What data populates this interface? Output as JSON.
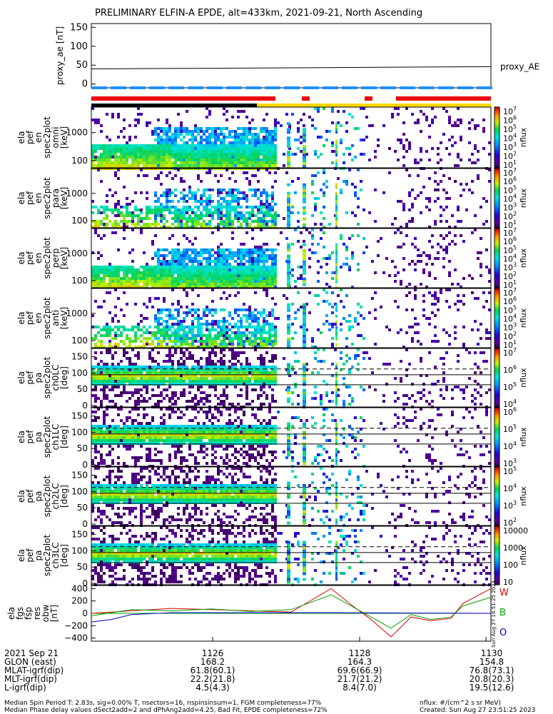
{
  "chart_data": {
    "type": "multi-panel-spectrogram",
    "title": "PRELIMINARY ELFIN-A EPDE, alt=433km, 2021-09-21, North Ascending",
    "panels": [
      {
        "id": "proxy_ae",
        "ylabel": "proxy_ae [nT]",
        "ylim": [
          -10,
          160
        ],
        "yticks": [
          0,
          50,
          100,
          150
        ],
        "legend": "proxy_AE",
        "series": [
          {
            "name": "proxy_AE",
            "x": [
              0,
              0.5,
              1
            ],
            "y": [
              40,
              43,
              46
            ]
          }
        ]
      },
      {
        "id": "en_omni",
        "ylabel": [
          "ela",
          "pef",
          "en",
          "spec2plot",
          "omni",
          "[keV]"
        ],
        "yticks": [
          "100",
          "1000"
        ],
        "cbar": {
          "label": "nflux",
          "ticks": [
            "10^7",
            "10^6",
            "10^5",
            "10^4",
            "10^3",
            "10^2",
            "10^1"
          ]
        }
      },
      {
        "id": "en_para",
        "ylabel": [
          "ela",
          "pef",
          "en",
          "spec2plot",
          "para",
          "[keV]"
        ],
        "yticks": [
          "100",
          "1000"
        ],
        "cbar": {
          "label": "nflux",
          "ticks": [
            "10^7",
            "10^6",
            "10^5",
            "10^4",
            "10^3",
            "10^2",
            "10^1"
          ]
        }
      },
      {
        "id": "en_perp",
        "ylabel": [
          "ela",
          "pef",
          "en",
          "spec2plot",
          "perp",
          "[keV]"
        ],
        "yticks": [
          "100",
          "1000"
        ],
        "cbar": {
          "label": "nflux",
          "ticks": [
            "10^7",
            "10^6",
            "10^5",
            "10^4",
            "10^3",
            "10^2",
            "10^1"
          ]
        }
      },
      {
        "id": "en_anti",
        "ylabel": [
          "ela",
          "pef",
          "en",
          "spec2plot",
          "anti",
          "[keV]"
        ],
        "yticks": [
          "100",
          "1000"
        ],
        "cbar": {
          "label": "nflux",
          "ticks": [
            "10^7",
            "10^6",
            "10^5",
            "10^4",
            "10^3",
            "10^2",
            "10^1"
          ]
        }
      },
      {
        "id": "ch0LC",
        "ylabel": [
          "ela",
          "pef",
          "pa",
          "spec2plot",
          "ch0LC",
          "[deg]"
        ],
        "yticks": [
          "0",
          "50",
          "100",
          "150"
        ],
        "cbar": {
          "label": "nflux",
          "ticks": [
            "10^7",
            "10^6",
            "10^5",
            "10^4"
          ]
        }
      },
      {
        "id": "ch1LC",
        "ylabel": [
          "ela",
          "pef",
          "pa",
          "spec2plot",
          "ch1LC",
          "[deg]"
        ],
        "yticks": [
          "0",
          "50",
          "100",
          "150"
        ],
        "cbar": {
          "label": "nflux",
          "ticks": [
            "10^6",
            "10^5",
            "10^4",
            "10^3"
          ]
        }
      },
      {
        "id": "ch2LC",
        "ylabel": [
          "ela",
          "pef",
          "pa",
          "spec2plot",
          "ch2LC",
          "[deg]"
        ],
        "yticks": [
          "0",
          "50",
          "100",
          "150"
        ],
        "cbar": {
          "label": "nflux",
          "ticks": [
            "10^5",
            "10^4",
            "10^3",
            "10^2"
          ]
        }
      },
      {
        "id": "ch3LC",
        "ylabel": [
          "ela",
          "pef",
          "pa",
          "spec2plot",
          "ch3LC",
          "[deg]"
        ],
        "yticks": [
          "0",
          "50",
          "100",
          "150"
        ],
        "cbar": {
          "label": "nflux",
          "ticks": [
            "10000",
            "1000",
            "100",
            "10"
          ]
        }
      },
      {
        "id": "fgs",
        "ylabel": [
          "ela",
          "fgs",
          "fsp",
          "res",
          "obw",
          "[nT]"
        ],
        "yticks": [
          "400",
          "200",
          "0",
          "−200",
          "−400"
        ],
        "ylim": [
          -450,
          450
        ],
        "legend": [
          "W",
          "B",
          "O"
        ],
        "series": [
          {
            "name": "W",
            "x": [
              0,
              0.1,
              0.2,
              0.3,
              0.4,
              0.5,
              0.6,
              0.65,
              0.7,
              0.75,
              0.8,
              0.85,
              0.9,
              0.93,
              1
            ],
            "y": [
              0,
              40,
              80,
              60,
              40,
              20,
              400,
              140,
              -100,
              -380,
              -60,
              -120,
              -80,
              160,
              400
            ]
          },
          {
            "name": "B",
            "x": [
              0,
              0.1,
              0.2,
              0.3,
              0.4,
              0.5,
              0.6,
              0.65,
              0.7,
              0.75,
              0.8,
              0.85,
              0.9,
              0.93,
              1
            ],
            "y": [
              -40,
              60,
              40,
              70,
              30,
              60,
              300,
              120,
              -60,
              -240,
              -20,
              -100,
              -60,
              120,
              260
            ]
          },
          {
            "name": "O",
            "x": [
              0,
              0.05,
              0.1,
              0.2,
              0.4,
              0.6,
              0.8,
              1
            ],
            "y": [
              -140,
              -100,
              -20,
              10,
              10,
              10,
              5,
              0
            ]
          }
        ]
      }
    ],
    "xaxis": {
      "ticks": [
        "1126",
        "1128",
        "1130"
      ],
      "rows": [
        {
          "label": "2021 Sep 21",
          "values": [
            "",
            "",
            ""
          ]
        },
        {
          "label": "GLON (east)",
          "values": [
            "168.2",
            "164.3",
            "154.8"
          ]
        },
        {
          "label": "MLAT-igrf(dip)",
          "values": [
            "61.8(60.1)",
            "69.6(66.9)",
            "76.8(73.1)"
          ]
        },
        {
          "label": "MLT-igrf(dip)",
          "values": [
            "22.2(21.8)",
            "21.7(21.2)",
            "20.8(20.3)"
          ]
        },
        {
          "label": "L-igrf(dip)",
          "values": [
            "4.5(4.3)",
            "8.4(7.0)",
            "19.5(12.6)"
          ]
        }
      ]
    }
  },
  "side_text": "Sun Aug 27 16:51:25 2023",
  "footer": {
    "line1": "Median Spin Period T: 2.83s, sig=0.00% T, nsectors=16, nspinsinsum=1, FGM completeness=77%",
    "line2": "Median Phase delay values dSect2add=2 and dPhAng2add=4.25, Bad Fit, EPDE completeness=72%",
    "units": "nflux: #/(cm^2 s sr MeV)",
    "created": "Created: Sun Aug 27 23:51:25 2023"
  },
  "colors": {
    "red": "#e00000",
    "green": "#00a000",
    "blue": "#0000cc",
    "bar_blue": "#1e90ff",
    "bar_red": "#ee0000",
    "bar_yellow": "#ffd700"
  }
}
